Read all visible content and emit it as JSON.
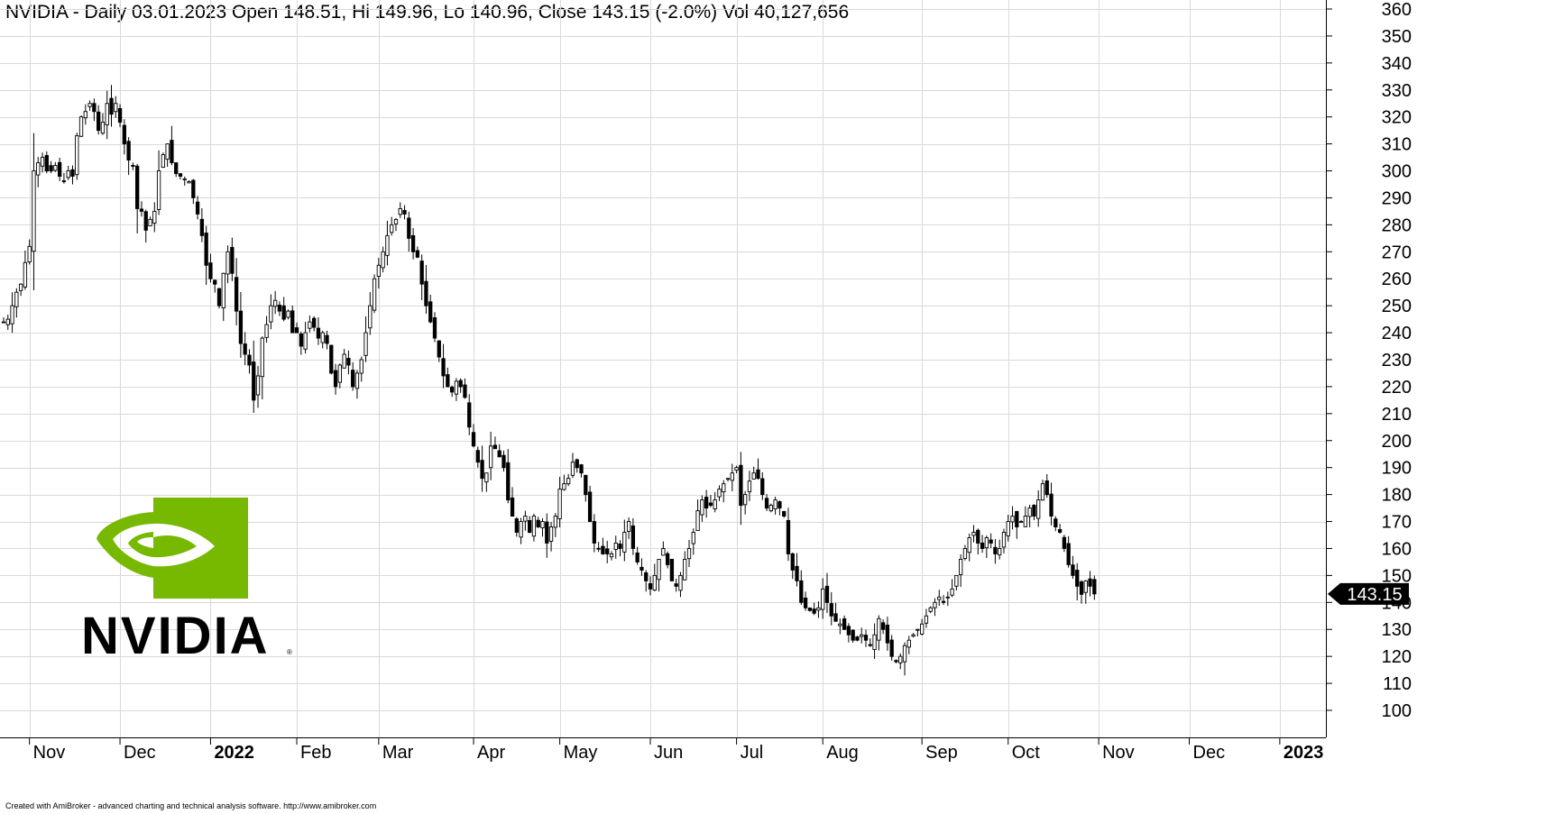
{
  "header": {
    "ticker": "NVIDIA",
    "text": "NVIDIA - Daily 03.01.2023 Open 148.51, Hi 149.96, Lo 140.96, Close 143.15 (-2.0%) Vol 40,127,656"
  },
  "footer": {
    "text": "Created with AmiBroker - advanced charting and technical analysis software. http://www.amibroker.com"
  },
  "logo": {
    "wordmark": "NVIDIA",
    "brand_color": "#76B900"
  },
  "colors": {
    "up_body": "#ffffff",
    "down_body": "#000000",
    "grid": "#d9d9d9",
    "last_price_tag": "#000000",
    "last_price_text": "#ffffff"
  },
  "chart_data": {
    "type": "candlestick",
    "title": "NVIDIA - Daily 03.01.2023",
    "last_bar": {
      "date": "03.01.2023",
      "open": 148.51,
      "high": 149.96,
      "low": 140.96,
      "close": 143.15,
      "change_pct": -2.0,
      "volume": 40127656
    },
    "last_price_label": "143.15",
    "ylim": [
      100,
      360
    ],
    "y_ticks": [
      100,
      110,
      120,
      130,
      140,
      150,
      160,
      170,
      180,
      190,
      200,
      210,
      220,
      230,
      240,
      250,
      260,
      270,
      280,
      290,
      300,
      310,
      320,
      330,
      340,
      350,
      360
    ],
    "x_tick_labels": [
      {
        "label": "Nov",
        "bar": 6,
        "bold": false
      },
      {
        "label": "Dec",
        "bar": 27,
        "bold": false
      },
      {
        "label": "2022",
        "bar": 48,
        "bold": true
      },
      {
        "label": "Feb",
        "bar": 68,
        "bold": false
      },
      {
        "label": "Mar",
        "bar": 87,
        "bold": false
      },
      {
        "label": "Apr",
        "bar": 109,
        "bold": false
      },
      {
        "label": "May",
        "bar": 129,
        "bold": false
      },
      {
        "label": "Jun",
        "bar": 150,
        "bold": false
      },
      {
        "label": "Jul",
        "bar": 170,
        "bold": false
      },
      {
        "label": "Aug",
        "bar": 190,
        "bold": false
      },
      {
        "label": "Sep",
        "bar": 213,
        "bold": false
      },
      {
        "label": "Oct",
        "bar": 233,
        "bold": false
      },
      {
        "label": "Nov",
        "bar": 254,
        "bold": false
      },
      {
        "label": "Dec",
        "bar": 275,
        "bold": false
      },
      {
        "label": "2023",
        "bar": 296,
        "bold": true
      }
    ],
    "grid": true,
    "approx_closes": [
      244,
      245,
      250,
      255,
      258,
      266,
      272,
      300,
      303,
      305,
      300,
      300,
      302,
      298,
      296,
      300,
      298,
      313,
      320,
      322,
      325,
      322,
      315,
      318,
      325,
      321,
      325,
      318,
      310,
      304,
      302,
      286,
      285,
      278,
      282,
      285,
      300,
      306,
      310,
      303,
      299,
      298,
      297,
      296,
      290,
      284,
      276,
      265,
      260,
      258,
      250,
      262,
      270,
      262,
      248,
      236,
      232,
      228,
      215,
      224,
      238,
      243,
      250,
      252,
      248,
      245,
      248,
      240,
      240,
      235,
      240,
      244,
      242,
      238,
      240,
      236,
      225,
      220,
      228,
      232,
      228,
      220,
      225,
      230,
      240,
      250,
      260,
      265,
      270,
      276,
      280,
      282,
      286,
      284,
      275,
      270,
      268,
      258,
      250,
      244,
      238,
      231,
      224,
      220,
      218,
      222,
      220,
      216,
      205,
      198,
      192,
      186,
      188,
      198,
      197,
      194,
      190,
      178,
      172,
      166,
      170,
      172,
      166,
      172,
      168,
      170,
      162,
      168,
      172,
      182,
      184,
      186,
      192,
      190,
      188,
      180,
      170,
      162,
      160,
      158,
      158,
      158,
      162,
      160,
      166,
      170,
      160,
      155,
      152,
      148,
      145,
      150,
      156,
      160,
      154,
      148,
      146,
      150,
      156,
      160,
      166,
      174,
      178,
      175,
      176,
      178,
      182,
      184,
      186,
      188,
      190,
      176,
      180,
      185,
      188,
      186,
      180,
      175,
      176,
      178,
      175,
      172,
      158,
      152,
      148,
      140,
      138,
      137,
      136,
      138,
      145,
      140,
      135,
      133,
      132,
      130,
      128,
      126,
      126,
      128,
      126,
      124,
      128,
      134,
      130,
      125,
      120,
      118,
      120,
      124,
      126,
      128,
      130,
      132,
      135,
      138,
      140,
      142,
      140,
      142,
      145,
      150,
      156,
      160,
      164,
      166,
      162,
      160,
      164,
      162,
      158,
      160,
      166,
      170,
      172,
      168,
      170,
      172,
      175,
      172,
      178,
      184,
      180,
      172,
      168,
      166,
      160,
      154,
      150,
      146,
      143,
      148,
      146,
      143
    ]
  }
}
